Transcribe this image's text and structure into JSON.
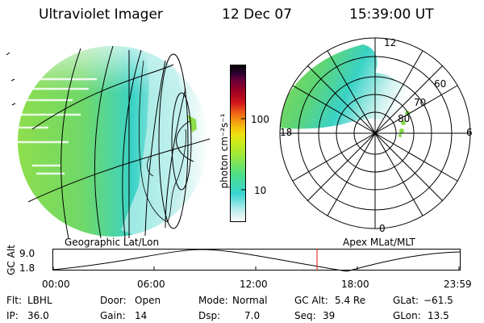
{
  "header": {
    "instrument": "Ultraviolet Imager",
    "date": "12 Dec 07",
    "time": "15:39:00 UT"
  },
  "colorbar": {
    "unit_label": "photon cm⁻²s⁻¹",
    "ticks": [
      "100",
      "10"
    ],
    "scale": "log",
    "colors": [
      "#fafafa",
      "#bfeeee",
      "#38d4d0",
      "#4ce08a",
      "#9ae83e",
      "#c8ec1a",
      "#f0e010",
      "#f4b010",
      "#ee5a18",
      "#d0141c",
      "#9a0024",
      "#6a003a",
      "#2a0030",
      "#000000"
    ]
  },
  "left_panel": {
    "caption": "Geographic Lat/Lon"
  },
  "right_panel": {
    "caption": "Apex MLat/MLT",
    "mlt_labels": [
      "12",
      "18",
      "6",
      "0"
    ],
    "mlat_labels": [
      "60",
      "70",
      "80"
    ]
  },
  "altitude_plot": {
    "ylabel": "GC Alt",
    "yticks": [
      "9.0",
      "1.8"
    ],
    "xticks": [
      "00:00",
      "06:00",
      "12:00",
      "18:00",
      "23:59"
    ],
    "current_marker_time": "15:39"
  },
  "footer": {
    "flt_label": "Flt:",
    "flt_value": "LBHL",
    "ip_label": "IP:",
    "ip_value": "36.0",
    "door_label": "Door:",
    "door_value": "Open",
    "gain_label": "Gain:",
    "gain_value": "14",
    "mode_label": "Mode:",
    "mode_value": "Normal",
    "dsp_label": "Dsp:",
    "dsp_value": "7.0",
    "gcalt_label": "GC Alt:",
    "gcalt_value": "5.4 Re",
    "seq_label": "Seq:",
    "seq_value": "39",
    "glat_label": "GLat:",
    "glat_value": "−61.5",
    "glon_label": "GLon:",
    "glon_value": "13.5"
  },
  "colors": {
    "marker": "#e01010",
    "auroral_green": "#86dc4a",
    "auroral_cyan": "#3ad4c8"
  }
}
